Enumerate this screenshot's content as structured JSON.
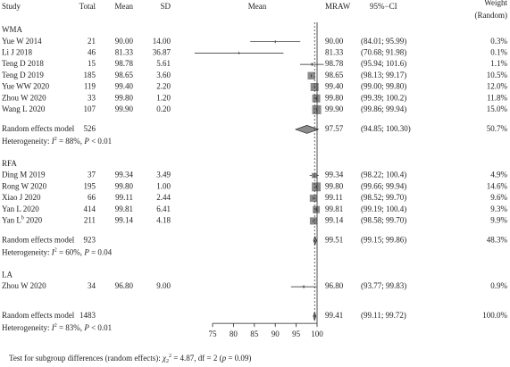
{
  "chart_data": {
    "type": "forest",
    "columns": {
      "study": "Study",
      "total": "Total",
      "mean": "Mean",
      "sd": "SD",
      "plot": "Mean",
      "mraw": "MRAW",
      "ci": "95%−CI",
      "weight": [
        "Weight",
        "(Random)"
      ]
    },
    "groups": [
      {
        "name": "WMA",
        "studies": [
          {
            "study": "Yue W 2014",
            "total": 21,
            "mean": "90.00",
            "sd": "14.00",
            "mraw": 90,
            "mraw_label": "90.00",
            "ci": [
              84.01,
              95.99
            ],
            "ci_label": "(84.01; 95.99)",
            "weight": 0.3,
            "weight_label": "0.3%"
          },
          {
            "study": "Li J 2018",
            "total": 46,
            "mean": "81.33",
            "sd": "36.87",
            "mraw": 81.33,
            "mraw_label": "81.33",
            "ci": [
              70.68,
              91.98
            ],
            "ci_label": "(70.68; 91.98)",
            "weight": 0.1,
            "weight_label": "0.1%"
          },
          {
            "study": "Teng D 2018",
            "total": 15,
            "mean": "98.78",
            "sd": "5.61",
            "mraw": 98.78,
            "mraw_label": "98.78",
            "ci": [
              95.94,
              101.6
            ],
            "ci_label": "(95.94; 101.6)",
            "weight": 1.1,
            "weight_label": "1.1%"
          },
          {
            "study": "Teng D 2019",
            "total": 185,
            "mean": "98.65",
            "sd": "3.60",
            "mraw": 98.65,
            "mraw_label": "98.65",
            "ci": [
              98.13,
              99.17
            ],
            "ci_label": "(98.13; 99.17)",
            "weight": 10.5,
            "weight_label": "10.5%"
          },
          {
            "study": "Yue WW 2020",
            "total": 119,
            "mean": "99.40",
            "sd": "2.20",
            "mraw": 99.4,
            "mraw_label": "99.40",
            "ci": [
              99.0,
              99.8
            ],
            "ci_label": "(99.00; 99.80)",
            "weight": 12.0,
            "weight_label": "12.0%"
          },
          {
            "study": "Zhou W 2020",
            "total": 33,
            "mean": "99.80",
            "sd": "1.20",
            "mraw": 99.8,
            "mraw_label": "99.80",
            "ci": [
              99.39,
              100.2
            ],
            "ci_label": "(99.39; 100.2)",
            "weight": 11.8,
            "weight_label": "11.8%"
          },
          {
            "study": "Wang L 2020",
            "total": 107,
            "mean": "99.90",
            "sd": "0.20",
            "mraw": 99.9,
            "mraw_label": "99.90",
            "ci": [
              99.86,
              99.94
            ],
            "ci_label": "(99.86; 99.94)",
            "weight": 15.0,
            "weight_label": "15.0%"
          }
        ],
        "summary": {
          "label": "Random effects model",
          "total": 526,
          "mraw": 97.57,
          "mraw_label": "97.57",
          "ci": [
            94.85,
            100.3
          ],
          "ci_label": "(94.85; 100.30)",
          "weight": 50.7,
          "weight_label": "50.7%"
        },
        "heterogeneity": [
          "Heterogeneity: ",
          "I",
          "2",
          " = 88%, ",
          "P",
          " < 0.01"
        ]
      },
      {
        "name": "RFA",
        "studies": [
          {
            "study": "Ding M 2019",
            "total": 37,
            "mean": "99.34",
            "sd": "3.49",
            "mraw": 99.34,
            "mraw_label": "99.34",
            "ci": [
              98.22,
              100.4
            ],
            "ci_label": "(98.22; 100.4)",
            "weight": 4.9,
            "weight_label": "4.9%"
          },
          {
            "study": "Rong W 2020",
            "total": 195,
            "mean": "99.80",
            "sd": "1.00",
            "mraw": 99.8,
            "mraw_label": "99.80",
            "ci": [
              99.66,
              99.94
            ],
            "ci_label": "(99.66; 99.94)",
            "weight": 14.6,
            "weight_label": "14.6%"
          },
          {
            "study": "Xiao J 2020",
            "total": 66,
            "mean": "99.11",
            "sd": "2.44",
            "mraw": 99.11,
            "mraw_label": "99.11",
            "ci": [
              98.52,
              99.7
            ],
            "ci_label": "(98.52; 99.70)",
            "weight": 9.6,
            "weight_label": "9.6%"
          },
          {
            "study": "Yan L 2020",
            "total": 414,
            "mean": "99.81",
            "sd": "6.41",
            "mraw": 99.81,
            "mraw_label": "99.81",
            "ci": [
              99.19,
              100.4
            ],
            "ci_label": "(99.19; 100.4)",
            "weight": 9.3,
            "weight_label": "9.3%"
          },
          {
            "study": [
              "Yan L",
              "b",
              " 2020"
            ],
            "total": 211,
            "mean": "99.14",
            "sd": "4.18",
            "mraw": 99.14,
            "mraw_label": "99.14",
            "ci": [
              98.58,
              99.7
            ],
            "ci_label": "(98.58; 99.70)",
            "weight": 9.9,
            "weight_label": "9.9%"
          }
        ],
        "summary": {
          "label": "Random effects model",
          "total": 923,
          "mraw": 99.51,
          "mraw_label": "99.51",
          "ci": [
            99.15,
            99.86
          ],
          "ci_label": "(99.15; 99.86)",
          "weight": 48.3,
          "weight_label": "48.3%"
        },
        "heterogeneity": [
          "Heterogeneity: ",
          "I",
          "2",
          " = 60%, ",
          "P",
          " = 0.04"
        ]
      },
      {
        "name": "LA",
        "studies": [
          {
            "study": "Zhou W 2020",
            "total": 34,
            "mean": "96.80",
            "sd": "9.00",
            "mraw": 96.8,
            "mraw_label": "96.80",
            "ci": [
              93.77,
              99.83
            ],
            "ci_label": "(93.77; 99.83)",
            "weight": 0.9,
            "weight_label": "0.9%"
          }
        ]
      }
    ],
    "overall": {
      "label": "Random effects model",
      "total": 1483,
      "mraw": 99.41,
      "mraw_label": "99.41",
      "ci": [
        99.11,
        99.72
      ],
      "ci_label": "(99.11; 99.72)",
      "weight": 100.0,
      "weight_label": "100.0%",
      "heterogeneity": [
        "Heterogeneity: ",
        "I",
        "2",
        " = 83%, ",
        "P",
        " < 0.01"
      ]
    },
    "test": [
      "Test for subgroup differences (random effects): ",
      "χ",
      "2",
      "2",
      " = 4.87, df = 2 (",
      "p",
      " = 0.09)"
    ],
    "xlim": [
      75,
      100
    ],
    "xticks": [
      75,
      80,
      85,
      90,
      95,
      100
    ],
    "ref_line": 100,
    "colors": {
      "box": "#8c8c8c",
      "diamond": "#8c8c8c",
      "line": "#222222"
    }
  }
}
